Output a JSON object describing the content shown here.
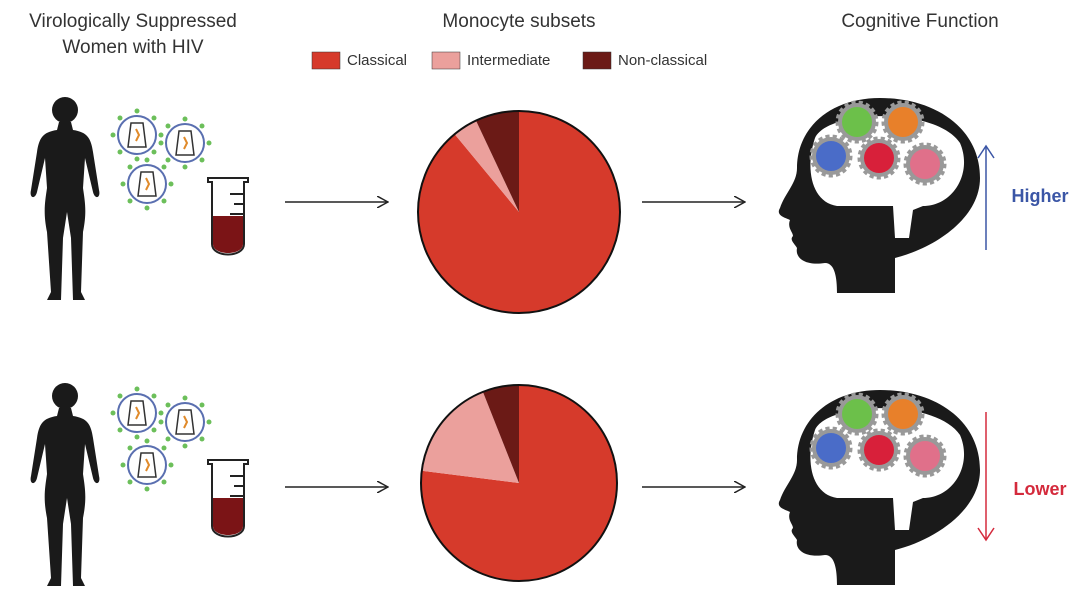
{
  "headers": {
    "participants": [
      "Virologically Suppressed",
      "Women with HIV"
    ],
    "monocytes": "Monocyte subsets",
    "cognition": "Cognitive Function"
  },
  "chart_data": {
    "type": "pie",
    "categories": [
      "Classical",
      "Intermediate",
      "Non-classical"
    ],
    "colors": [
      "#d63a2b",
      "#eba09c",
      "#6b1a16"
    ],
    "series": [
      {
        "values": [
          89,
          4,
          7
        ]
      },
      {
        "values": [
          77,
          17,
          6
        ]
      }
    ]
  },
  "outcomes": [
    {
      "label": "Higher",
      "color": "#3b56a6"
    },
    {
      "label": "Lower",
      "color": "#d42a3c"
    }
  ]
}
